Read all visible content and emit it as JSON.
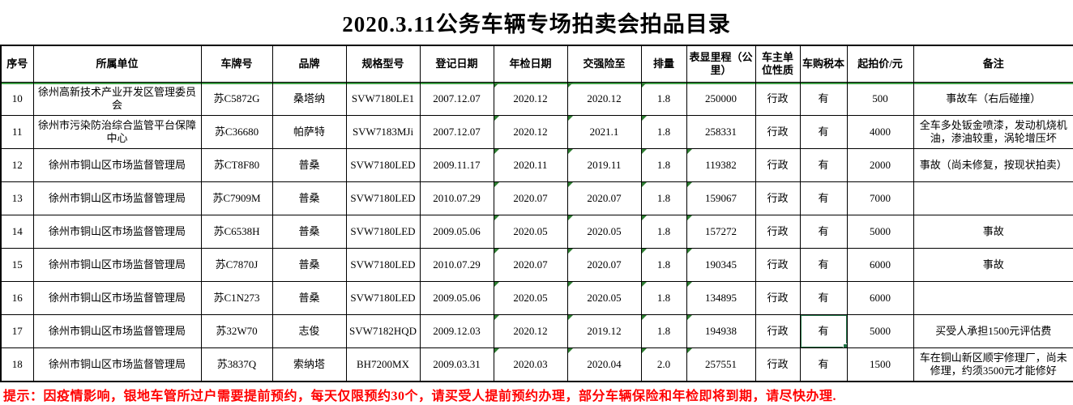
{
  "title": "2020.3.11公务车辆专场拍卖会拍品目录",
  "colors": {
    "grid": "#000000",
    "error_triangle_green": "#2e7d32",
    "selection_green": "#217346",
    "header_divider_green": "#3f9e46",
    "notice_red": "#ff0000"
  },
  "table": {
    "columns": [
      {
        "key": "serial",
        "label": "序号"
      },
      {
        "key": "unit",
        "label": "所属单位"
      },
      {
        "key": "plate",
        "label": "车牌号"
      },
      {
        "key": "brand",
        "label": "品牌"
      },
      {
        "key": "model",
        "label": "规格型号"
      },
      {
        "key": "reg_date",
        "label": "登记日期"
      },
      {
        "key": "inspection_date",
        "label": "年检日期"
      },
      {
        "key": "insurance_until",
        "label": "交强险至"
      },
      {
        "key": "displacement",
        "label": "排量"
      },
      {
        "key": "mileage",
        "label": "表显里程（公里）"
      },
      {
        "key": "owner_type",
        "label": "车主单位性质"
      },
      {
        "key": "tax_book",
        "label": "车购税本"
      },
      {
        "key": "start_price",
        "label": "起拍价/元"
      },
      {
        "key": "remark",
        "label": "备注"
      }
    ],
    "rows": [
      {
        "serial": "10",
        "unit": "徐州高新技术产业开发区管理委员会",
        "plate": "苏C5872G",
        "brand": "桑塔纳",
        "model": "SVW7180LE1",
        "reg_date": "2007.12.07",
        "inspection_date": "2020.12",
        "insurance_until": "2020.12",
        "displacement": "1.8",
        "mileage": "250000",
        "owner_type": "行政",
        "tax_book": "有",
        "start_price": "500",
        "remark": "事故车（右后碰撞）",
        "error_flags": [
          "inspection_date",
          "insurance_until",
          "displacement"
        ]
      },
      {
        "serial": "11",
        "unit": "徐州市污染防治综合监管平台保障中心",
        "plate": "苏C36680",
        "brand": "帕萨特",
        "model": "SVW7183MJi",
        "reg_date": "2007.12.07",
        "inspection_date": "2020.12",
        "insurance_until": "2021.1",
        "displacement": "1.8",
        "mileage": "258331",
        "owner_type": "行政",
        "tax_book": "有",
        "start_price": "4000",
        "remark": "全车多处钣金喷漆，发动机烧机油，渗油较重，涡轮增压坏",
        "error_flags": [
          "inspection_date",
          "insurance_until",
          "displacement"
        ]
      },
      {
        "serial": "12",
        "unit": "徐州市铜山区市场监督管理局",
        "plate": "苏CT8F80",
        "brand": "普桑",
        "model": "SVW7180LED",
        "reg_date": "2009.11.17",
        "inspection_date": "2020.11",
        "insurance_until": "2019.11",
        "displacement": "1.8",
        "mileage": "119382",
        "owner_type": "行政",
        "tax_book": "有",
        "start_price": "2000",
        "remark": "事故（尚未修复，按现状拍卖）",
        "error_flags": [
          "inspection_date",
          "insurance_until",
          "displacement",
          "mileage"
        ]
      },
      {
        "serial": "13",
        "unit": "徐州市铜山区市场监督管理局",
        "plate": "苏C7909M",
        "brand": "普桑",
        "model": "SVW7180LED",
        "reg_date": "2010.07.29",
        "inspection_date": "2020.07",
        "insurance_until": "2020.07",
        "displacement": "1.8",
        "mileage": "159067",
        "owner_type": "行政",
        "tax_book": "有",
        "start_price": "7000",
        "remark": "",
        "error_flags": [
          "inspection_date",
          "insurance_until",
          "displacement",
          "mileage"
        ]
      },
      {
        "serial": "14",
        "unit": "徐州市铜山区市场监督管理局",
        "plate": "苏C6538H",
        "brand": "普桑",
        "model": "SVW7180LED",
        "reg_date": "2009.05.06",
        "inspection_date": "2020.05",
        "insurance_until": "2020.05",
        "displacement": "1.8",
        "mileage": "157272",
        "owner_type": "行政",
        "tax_book": "有",
        "start_price": "5000",
        "remark": "事故",
        "error_flags": [
          "inspection_date",
          "insurance_until",
          "displacement",
          "mileage"
        ]
      },
      {
        "serial": "15",
        "unit": "徐州市铜山区市场监督管理局",
        "plate": "苏C7870J",
        "brand": "普桑",
        "model": "SVW7180LED",
        "reg_date": "2010.07.29",
        "inspection_date": "2020.07",
        "insurance_until": "2020.07",
        "displacement": "1.8",
        "mileage": "190345",
        "owner_type": "行政",
        "tax_book": "有",
        "start_price": "6000",
        "remark": "事故",
        "error_flags": [
          "inspection_date",
          "insurance_until",
          "displacement",
          "mileage"
        ]
      },
      {
        "serial": "16",
        "unit": "徐州市铜山区市场监督管理局",
        "plate": "苏C1N273",
        "brand": "普桑",
        "model": "SVW7180LED",
        "reg_date": "2009.05.06",
        "inspection_date": "2020.05",
        "insurance_until": "2020.05",
        "displacement": "1.8",
        "mileage": "134895",
        "owner_type": "行政",
        "tax_book": "有",
        "start_price": "6000",
        "remark": "",
        "error_flags": [
          "inspection_date",
          "insurance_until",
          "displacement",
          "mileage"
        ]
      },
      {
        "serial": "17",
        "unit": "徐州市铜山区市场监督管理局",
        "plate": "苏32W70",
        "brand": "志俊",
        "model": "SVW7182HQD",
        "reg_date": "2009.12.03",
        "inspection_date": "2020.12",
        "insurance_until": "2019.12",
        "displacement": "1.8",
        "mileage": "194938",
        "owner_type": "行政",
        "tax_book": "有",
        "start_price": "5000",
        "remark": "买受人承担1500元评估费",
        "error_flags": [
          "inspection_date",
          "insurance_until",
          "displacement",
          "mileage"
        ]
      },
      {
        "serial": "18",
        "unit": "徐州市铜山区市场监督管理局",
        "plate": "苏3837Q",
        "brand": "索纳塔",
        "model": "BH7200MX",
        "reg_date": "2009.03.31",
        "inspection_date": "2020.03",
        "insurance_until": "2020.04",
        "displacement": "2.0",
        "mileage": "257551",
        "owner_type": "行政",
        "tax_book": "有",
        "start_price": "1500",
        "remark": "车在铜山新区顺宇修理厂，尚未修理，约须3500元才能修好",
        "error_flags": [
          "inspection_date",
          "insurance_until",
          "displacement",
          "mileage"
        ]
      }
    ],
    "selection": {
      "row_serial": "17",
      "column": "tax_book"
    }
  },
  "footer": {
    "note": "提示：因疫情影响，银地车管所过户需要提前预约，每天仅限预约30个，请买受人提前预约办理，部分车辆保险和年检即将到期，请尽快办理."
  }
}
